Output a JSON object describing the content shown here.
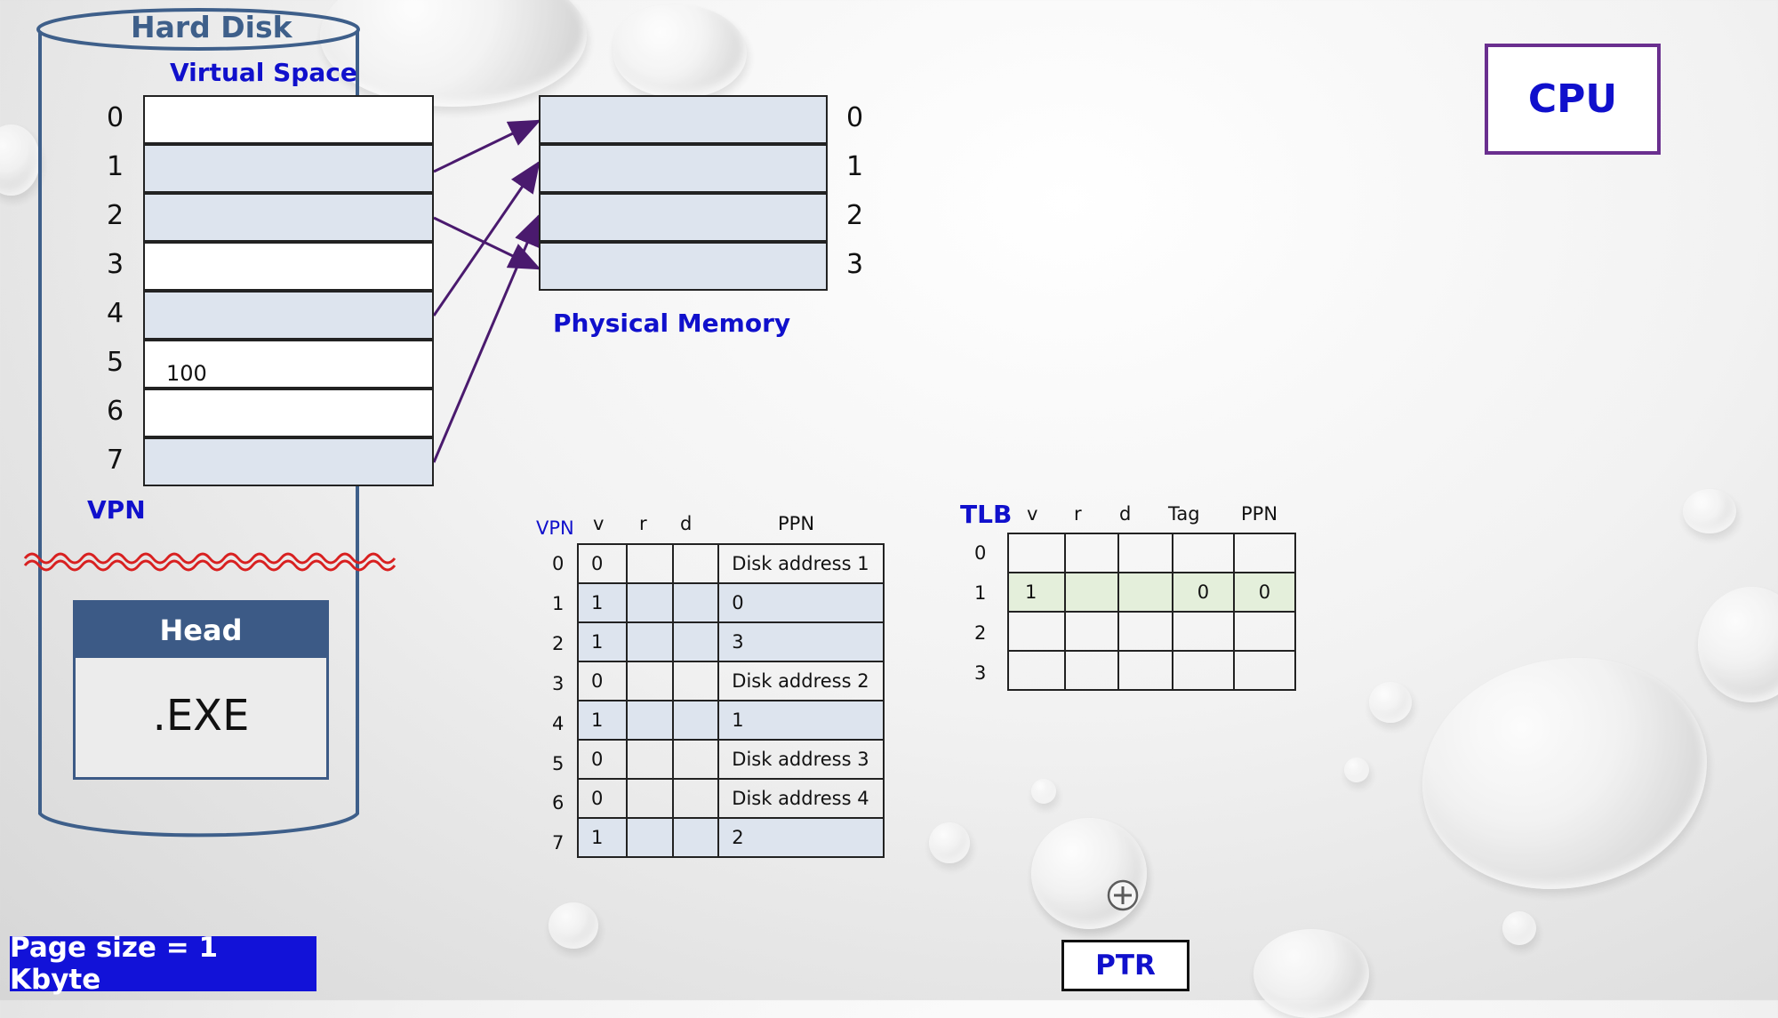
{
  "hard_disk": {
    "title": "Hard Disk",
    "virtual_space_label": "Virtual Space",
    "vpn_label": "VPN"
  },
  "virtual_pages": [
    {
      "vpn": "0",
      "shaded": false
    },
    {
      "vpn": "1",
      "shaded": true
    },
    {
      "vpn": "2",
      "shaded": true
    },
    {
      "vpn": "3",
      "shaded": false
    },
    {
      "vpn": "4",
      "shaded": true
    },
    {
      "vpn": "5",
      "shaded": false
    },
    {
      "vpn": "6",
      "shaded": false
    },
    {
      "vpn": "7",
      "shaded": true
    }
  ],
  "offset_label": "100",
  "physical_memory": {
    "label": "Physical Memory",
    "frames": [
      "0",
      "1",
      "2",
      "3"
    ]
  },
  "mappings": [
    {
      "from": "1",
      "to": "0"
    },
    {
      "from": "2",
      "to": "3"
    },
    {
      "from": "4",
      "to": "1"
    },
    {
      "from": "7",
      "to": "2"
    }
  ],
  "exe_file": {
    "head": "Head",
    "body": ".EXE"
  },
  "page_table": {
    "headers": {
      "vpn": "VPN",
      "v": "v",
      "r": "r",
      "d": "d",
      "ppn": "PPN"
    },
    "rows": [
      {
        "vpn": "0",
        "v": "0",
        "r": "",
        "d": "",
        "ppn": "Disk address 1"
      },
      {
        "vpn": "1",
        "v": "1",
        "r": "",
        "d": "",
        "ppn": "0"
      },
      {
        "vpn": "2",
        "v": "1",
        "r": "",
        "d": "",
        "ppn": "3"
      },
      {
        "vpn": "3",
        "v": "0",
        "r": "",
        "d": "",
        "ppn": "Disk address 2"
      },
      {
        "vpn": "4",
        "v": "1",
        "r": "",
        "d": "",
        "ppn": "1"
      },
      {
        "vpn": "5",
        "v": "0",
        "r": "",
        "d": "",
        "ppn": "Disk address 3"
      },
      {
        "vpn": "6",
        "v": "0",
        "r": "",
        "d": "",
        "ppn": "Disk address 4"
      },
      {
        "vpn": "7",
        "v": "1",
        "r": "",
        "d": "",
        "ppn": "2"
      }
    ]
  },
  "tlb": {
    "title": "TLB",
    "headers": {
      "v": "v",
      "r": "r",
      "d": "d",
      "tag": "Tag",
      "ppn": "PPN"
    },
    "rows": [
      {
        "idx": "0",
        "v": "",
        "r": "",
        "d": "",
        "tag": "",
        "ppn": ""
      },
      {
        "idx": "1",
        "v": "1",
        "r": "",
        "d": "",
        "tag": "0",
        "ppn": "0"
      },
      {
        "idx": "2",
        "v": "",
        "r": "",
        "d": "",
        "tag": "",
        "ppn": ""
      },
      {
        "idx": "3",
        "v": "",
        "r": "",
        "d": "",
        "tag": "",
        "ppn": ""
      }
    ]
  },
  "cpu_label": "CPU",
  "ptr_label": "PTR",
  "page_size_label": "Page size = 1 Kbyte",
  "colors": {
    "disk_outline": "#3e5f8a",
    "accent_blue": "#1010cc",
    "arrow": "#4a1a6e",
    "shade": "#dde4ee",
    "cpu_border": "#6a2f8f",
    "head_bg": "#3c5a86"
  }
}
